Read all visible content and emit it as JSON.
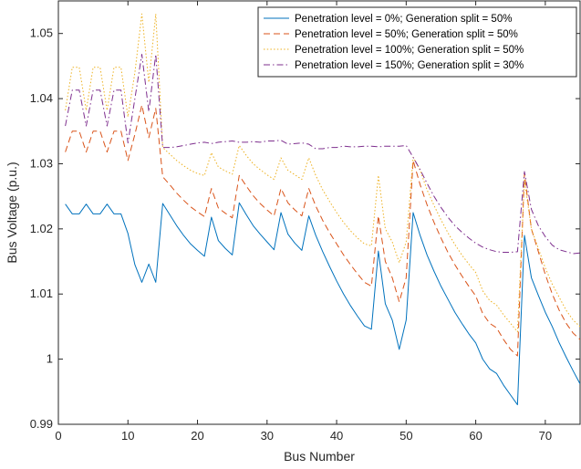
{
  "chart_data": {
    "type": "line",
    "title": "",
    "xlabel": "Bus Number",
    "ylabel": "Bus Voltage (p.u.)",
    "xlim": [
      0,
      75
    ],
    "ylim": [
      0.99,
      1.055
    ],
    "xticks": [
      0,
      10,
      20,
      30,
      40,
      50,
      60,
      70
    ],
    "yticks": [
      0.99,
      1,
      1.01,
      1.02,
      1.03,
      1.04,
      1.05
    ],
    "ytick_labels": [
      "0.99",
      "1",
      "1.01",
      "1.02",
      "1.03",
      "1.04",
      "1.05"
    ],
    "grid": false,
    "legend_position": "top-right",
    "x": [
      1,
      2,
      3,
      4,
      5,
      6,
      7,
      8,
      9,
      10,
      11,
      12,
      13,
      14,
      15,
      16,
      17,
      18,
      19,
      20,
      21,
      22,
      23,
      24,
      25,
      26,
      27,
      28,
      29,
      30,
      31,
      32,
      33,
      34,
      35,
      36,
      37,
      38,
      39,
      40,
      41,
      42,
      43,
      44,
      45,
      46,
      47,
      48,
      49,
      50,
      51,
      52,
      53,
      54,
      55,
      56,
      57,
      58,
      59,
      60,
      61,
      62,
      63,
      64,
      65,
      66,
      67,
      68,
      69,
      70,
      71,
      72,
      73,
      74,
      75
    ],
    "series": [
      {
        "name": "Penetration level = 0%; Generation split = 50%",
        "color": "#0072BD",
        "dash": "solid",
        "values": [
          1.0238,
          1.0223,
          1.0223,
          1.0238,
          1.0223,
          1.0223,
          1.0238,
          1.0223,
          1.0223,
          1.0193,
          1.0145,
          1.0118,
          1.0146,
          1.0118,
          1.0239,
          1.0222,
          1.0205,
          1.019,
          1.0177,
          1.0167,
          1.0158,
          1.0218,
          1.0182,
          1.017,
          1.016,
          1.024,
          1.0222,
          1.0205,
          1.0192,
          1.018,
          1.0168,
          1.0225,
          1.0192,
          1.0178,
          1.0167,
          1.022,
          1.019,
          1.0165,
          1.0142,
          1.012,
          1.01,
          1.0082,
          1.0066,
          1.0051,
          1.0046,
          1.0166,
          1.0085,
          1.006,
          1.0015,
          1.006,
          1.0225,
          1.019,
          1.016,
          1.0135,
          1.0112,
          1.0092,
          1.0072,
          1.0055,
          1.0039,
          1.0025,
          1.0,
          0.9985,
          0.9978,
          0.996,
          0.9945,
          0.993,
          1.019,
          1.0125,
          1.0098,
          1.0072,
          1.005,
          1.0025,
          1.0003,
          0.9982,
          0.9962
        ]
      },
      {
        "name": "Penetration level = 50%; Generation split = 50%",
        "color": "#D95319",
        "dash": "dashed",
        "values": [
          1.0318,
          1.035,
          1.035,
          1.0318,
          1.035,
          1.035,
          1.0318,
          1.035,
          1.035,
          1.0305,
          1.0345,
          1.039,
          1.034,
          1.0385,
          1.028,
          1.0268,
          1.0255,
          1.0244,
          1.0234,
          1.0226,
          1.0219,
          1.0262,
          1.0232,
          1.0224,
          1.0217,
          1.0282,
          1.0266,
          1.0251,
          1.0239,
          1.0229,
          1.022,
          1.0262,
          1.024,
          1.0229,
          1.022,
          1.0262,
          1.0235,
          1.0213,
          1.0194,
          1.0177,
          1.016,
          1.0145,
          1.0131,
          1.0118,
          1.0112,
          1.022,
          1.015,
          1.0125,
          1.0088,
          1.0125,
          1.0305,
          1.0268,
          1.0237,
          1.021,
          1.0186,
          1.0164,
          1.0145,
          1.0128,
          1.0112,
          1.0097,
          1.007,
          1.0055,
          1.0048,
          1.003,
          1.0015,
          1.0005,
          1.0285,
          1.02,
          1.0165,
          1.013,
          1.01,
          1.0075,
          1.0055,
          1.004,
          1.003
        ]
      },
      {
        "name": "Penetration level = 100%; Generation split = 50%",
        "color": "#EDB120",
        "dash": "dotted",
        "values": [
          1.0382,
          1.0448,
          1.0448,
          1.0382,
          1.0448,
          1.0448,
          1.0382,
          1.0448,
          1.0448,
          1.0372,
          1.044,
          1.053,
          1.0425,
          1.053,
          1.0325,
          1.0315,
          1.0305,
          1.0297,
          1.029,
          1.0285,
          1.0282,
          1.0317,
          1.0295,
          1.0289,
          1.0284,
          1.0328,
          1.0313,
          1.03,
          1.0291,
          1.0283,
          1.0276,
          1.0309,
          1.029,
          1.0283,
          1.0276,
          1.0309,
          1.0282,
          1.026,
          1.0242,
          1.0225,
          1.021,
          1.0197,
          1.0186,
          1.0177,
          1.0174,
          1.0282,
          1.02,
          1.018,
          1.0148,
          1.018,
          1.031,
          1.029,
          1.026,
          1.0236,
          1.0214,
          1.0194,
          1.0176,
          1.016,
          1.0146,
          1.0133,
          1.0105,
          1.009,
          1.0083,
          1.0068,
          1.0055,
          1.0042,
          1.0275,
          1.02,
          1.017,
          1.014,
          1.0115,
          1.0095,
          1.0075,
          1.006,
          1.005
        ]
      },
      {
        "name": "Penetration level = 150%; Generation split = 30%",
        "color": "#7E2F8E",
        "dash": "dashdot",
        "values": [
          1.0358,
          1.0413,
          1.0413,
          1.0358,
          1.0413,
          1.0413,
          1.0358,
          1.0413,
          1.0413,
          1.0332,
          1.04,
          1.0468,
          1.038,
          1.0468,
          1.0325,
          1.0325,
          1.0326,
          1.0328,
          1.033,
          1.0332,
          1.0333,
          1.0331,
          1.0333,
          1.0334,
          1.0335,
          1.0333,
          1.0333,
          1.0334,
          1.0333,
          1.0335,
          1.0335,
          1.0336,
          1.033,
          1.0331,
          1.0332,
          1.033,
          1.0323,
          1.0323,
          1.0325,
          1.0325,
          1.0327,
          1.0326,
          1.0326,
          1.0327,
          1.0327,
          1.0326,
          1.0327,
          1.0327,
          1.0327,
          1.0328,
          1.031,
          1.0291,
          1.027,
          1.025,
          1.0233,
          1.0218,
          1.0205,
          1.0195,
          1.0186,
          1.0178,
          1.0172,
          1.0168,
          1.0165,
          1.0164,
          1.0164,
          1.0165,
          1.0288,
          1.023,
          1.0205,
          1.0188,
          1.0175,
          1.0168,
          1.0165,
          1.0162,
          1.0163
        ]
      }
    ]
  }
}
